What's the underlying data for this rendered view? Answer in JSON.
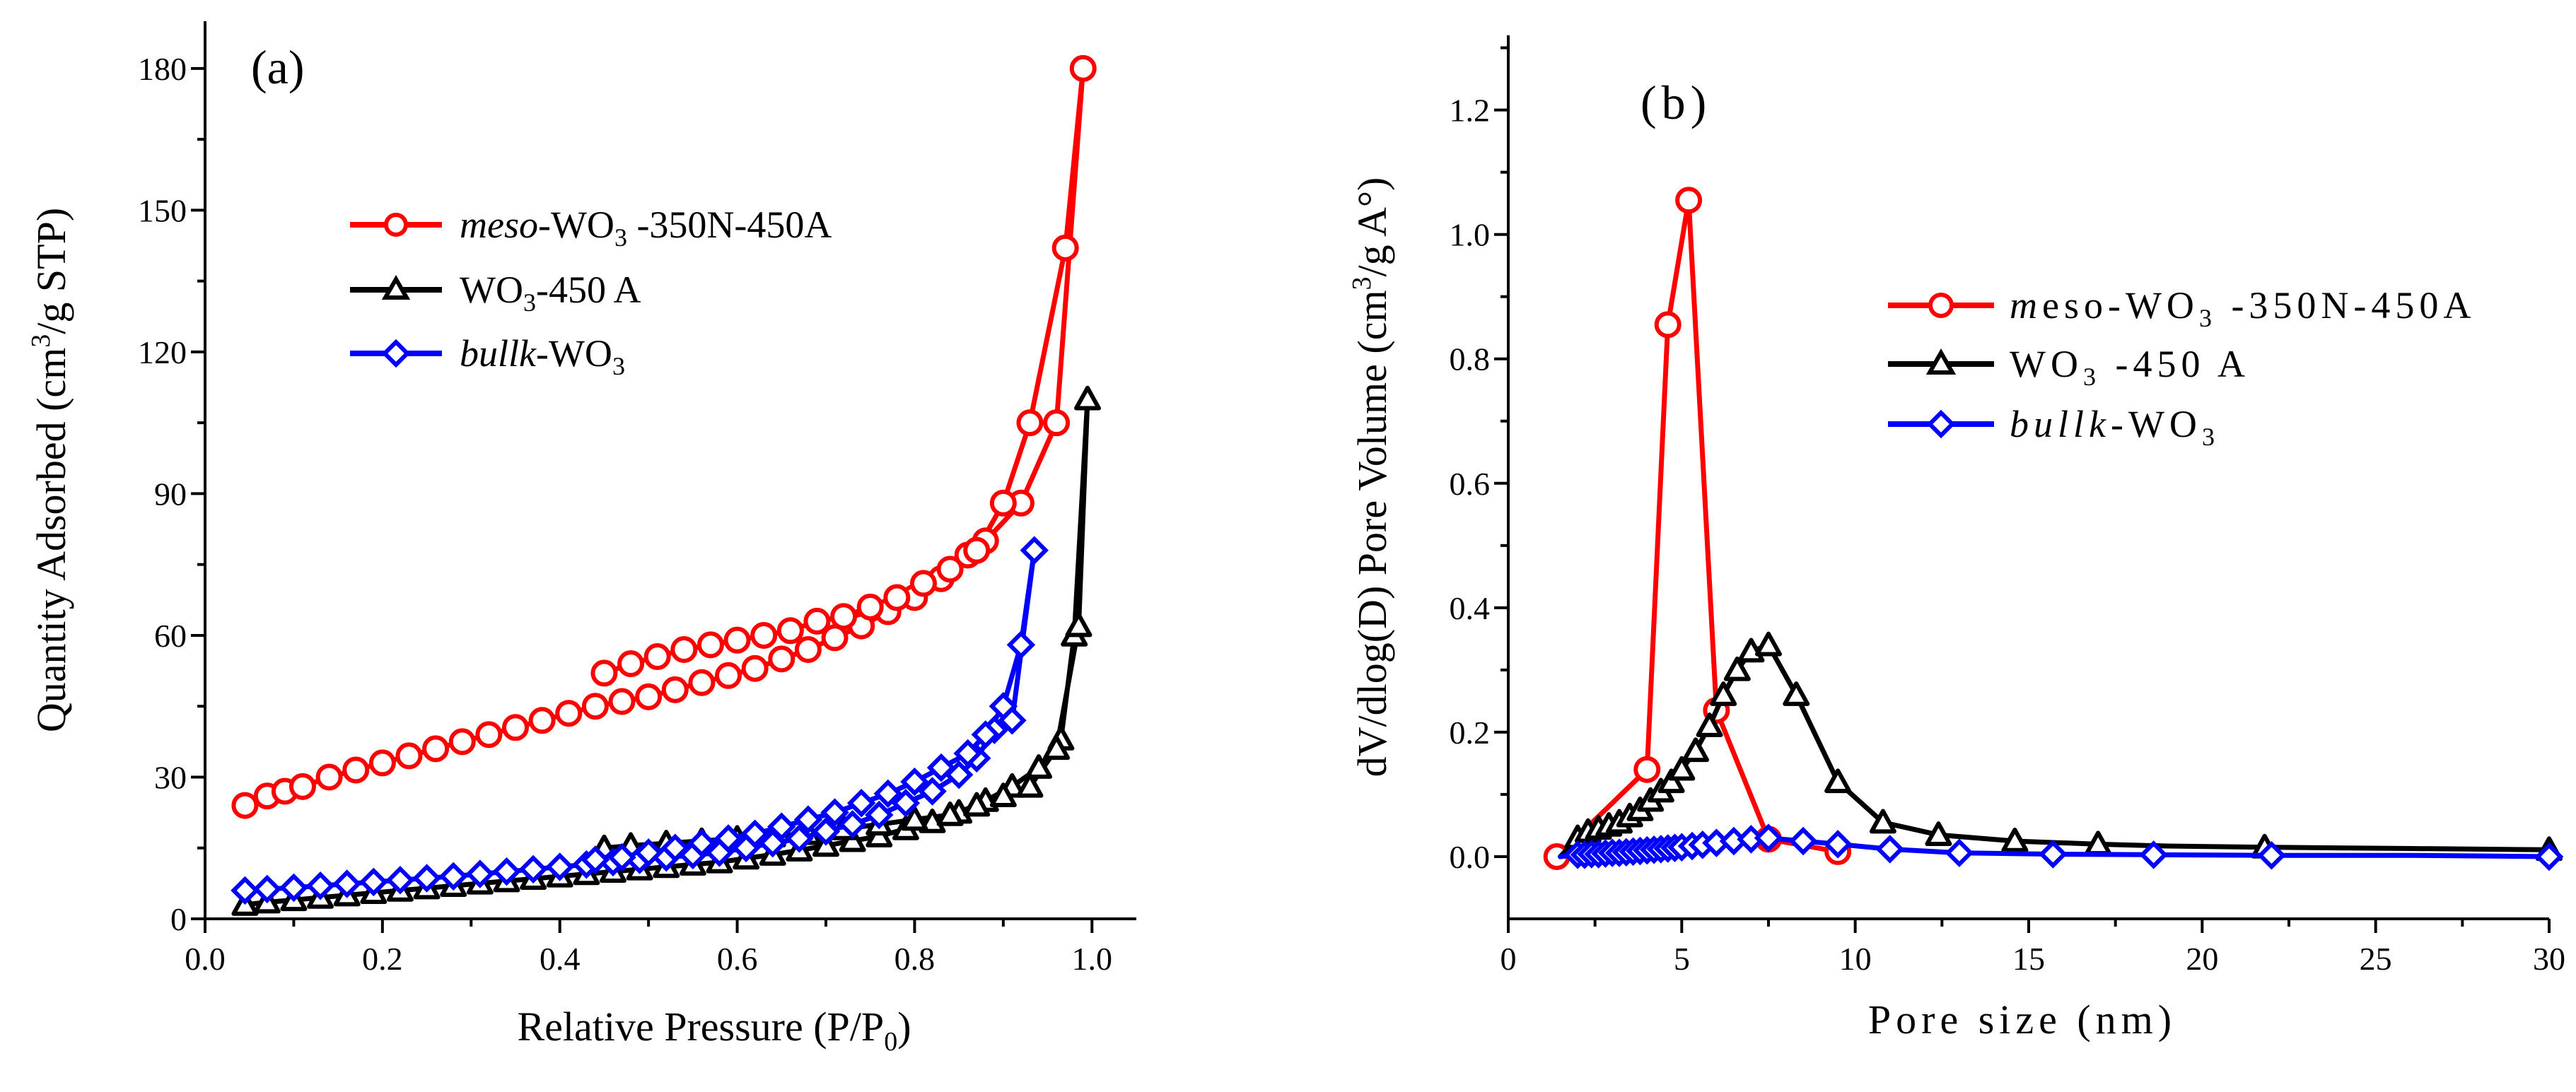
{
  "chart_data": [
    {
      "id": "a",
      "type": "line",
      "panel_label": "(a)",
      "xlabel_text": "Relative Pressure (P/P",
      "xlabel_sub": "0",
      "xlabel_close": ")",
      "ylabel_text": "Quantity Adsorbed (cm",
      "ylabel_sup": "3",
      "ylabel_rest": "/g STP)",
      "xlim": [
        0.0,
        1.05
      ],
      "ylim": [
        0,
        190
      ],
      "xticks": [
        0.0,
        0.2,
        0.4,
        0.6,
        0.8,
        1.0
      ],
      "xtick_labels": [
        "0.0",
        "0.2",
        "0.4",
        "0.6",
        "0.8",
        "1.0"
      ],
      "yticks": [
        0,
        30,
        60,
        90,
        120,
        150,
        180
      ],
      "ytick_labels": [
        "0",
        "30",
        "60",
        "90",
        "120",
        "150",
        "180"
      ],
      "series": [
        {
          "key": "meso",
          "color": "#ff0000",
          "marker": "circle",
          "legend": {
            "italic": "meso",
            "text": "-WO",
            "sub": "3",
            "tail": " -350N-450A"
          },
          "x": [
            0.045,
            0.07,
            0.09,
            0.11,
            0.14,
            0.17,
            0.2,
            0.23,
            0.26,
            0.29,
            0.32,
            0.35,
            0.38,
            0.41,
            0.44,
            0.47,
            0.5,
            0.53,
            0.56,
            0.59,
            0.62,
            0.65,
            0.68,
            0.71,
            0.74,
            0.77,
            0.8,
            0.83,
            0.86,
            0.88,
            0.92,
            0.96,
            0.99,
            0.97,
            0.93,
            0.9,
            0.87,
            0.84,
            0.81,
            0.78,
            0.75,
            0.72,
            0.69,
            0.66,
            0.63,
            0.6,
            0.57,
            0.54,
            0.51,
            0.48,
            0.45
          ],
          "y": [
            24,
            26,
            27,
            28,
            30,
            31.5,
            33,
            34.5,
            36,
            37.5,
            39,
            40.5,
            42,
            43.5,
            45,
            46,
            47,
            48.5,
            50,
            51.5,
            53,
            55,
            57,
            59.5,
            62,
            65,
            68,
            72,
            77,
            80,
            88,
            105,
            180,
            142,
            105,
            88,
            78,
            74,
            71,
            68,
            66,
            64,
            63,
            61,
            60,
            59,
            58,
            57,
            55.5,
            54,
            52
          ]
        },
        {
          "key": "wo3",
          "color": "#000000",
          "marker": "triangle",
          "legend": {
            "italic": "",
            "text": "WO",
            "sub": "3",
            "tail": "-450 A"
          },
          "x": [
            0.045,
            0.07,
            0.1,
            0.13,
            0.16,
            0.19,
            0.22,
            0.25,
            0.28,
            0.31,
            0.34,
            0.37,
            0.4,
            0.43,
            0.46,
            0.49,
            0.52,
            0.55,
            0.58,
            0.61,
            0.64,
            0.67,
            0.7,
            0.73,
            0.76,
            0.79,
            0.82,
            0.85,
            0.88,
            0.91,
            0.94,
            0.965,
            0.98,
            0.995,
            0.985,
            0.96,
            0.93,
            0.9,
            0.87,
            0.84,
            0.8,
            0.76,
            0.72,
            0.68,
            0.64,
            0.6,
            0.56,
            0.52,
            0.48,
            0.45
          ],
          "y": [
            3,
            3.5,
            4,
            4.5,
            5,
            5.5,
            6,
            6.5,
            7,
            7.5,
            8,
            8.5,
            9,
            9.5,
            10,
            10.5,
            11,
            11.5,
            12,
            12.8,
            13.6,
            14.5,
            15.5,
            16.5,
            17.5,
            19,
            20.5,
            22.5,
            25,
            28,
            32,
            38,
            60,
            110,
            62,
            36,
            28,
            26,
            24,
            22,
            21,
            20,
            19,
            18,
            17.5,
            17,
            16.5,
            16,
            15.5,
            15
          ]
        },
        {
          "key": "bulk",
          "color": "#0000ff",
          "marker": "diamond",
          "legend": {
            "italic": "bullk",
            "text": "-WO",
            "sub": "3",
            "tail": ""
          },
          "x": [
            0.045,
            0.07,
            0.1,
            0.13,
            0.16,
            0.19,
            0.22,
            0.25,
            0.28,
            0.31,
            0.34,
            0.37,
            0.4,
            0.43,
            0.46,
            0.49,
            0.52,
            0.55,
            0.58,
            0.61,
            0.64,
            0.67,
            0.7,
            0.73,
            0.76,
            0.79,
            0.82,
            0.85,
            0.87,
            0.89,
            0.91,
            0.935,
            0.92,
            0.9,
            0.88,
            0.86,
            0.83,
            0.8,
            0.77,
            0.74,
            0.71,
            0.68,
            0.65,
            0.62,
            0.59,
            0.56,
            0.53,
            0.5,
            0.47,
            0.44
          ],
          "y": [
            6,
            6.3,
            6.6,
            7,
            7.4,
            7.8,
            8.2,
            8.6,
            9,
            9.5,
            10,
            10.5,
            11,
            11.5,
            12,
            12.5,
            13,
            13.5,
            14,
            15,
            16,
            17,
            18.5,
            20,
            22,
            24.5,
            27,
            30.5,
            34,
            40,
            42,
            78,
            58,
            45,
            39,
            35,
            32,
            29,
            26.5,
            24.5,
            22.5,
            21,
            19.5,
            18,
            17,
            16,
            15,
            14,
            13,
            12.5
          ]
        }
      ]
    },
    {
      "id": "b",
      "type": "line",
      "panel_label": "(b)",
      "xlabel_text": "Pore size (nm)",
      "ylabel_text": "dV/dlog(D) Pore Volume (cm",
      "ylabel_sup": "3",
      "ylabel_rest": "/g A°)",
      "xlim": [
        0,
        30
      ],
      "ylim": [
        -0.1,
        1.32
      ],
      "xticks": [
        0,
        5,
        10,
        15,
        20,
        25,
        30
      ],
      "xtick_labels": [
        "0",
        "5",
        "10",
        "15",
        "20",
        "25",
        "30"
      ],
      "yticks": [
        0.0,
        0.2,
        0.4,
        0.6,
        0.8,
        1.0,
        1.2
      ],
      "ytick_labels": [
        "0.0",
        "0.2",
        "0.4",
        "0.6",
        "0.8",
        "1.0",
        "1.2"
      ],
      "series": [
        {
          "key": "meso",
          "color": "#ff0000",
          "marker": "circle",
          "legend": {
            "italic": "m",
            "text": "eso-WO",
            "sub": "3",
            "tail": " -350N-450A"
          },
          "x": [
            1.4,
            4.0,
            4.6,
            5.2,
            6.0,
            7.5,
            9.5
          ],
          "y": [
            0.0,
            0.14,
            0.855,
            1.055,
            0.235,
            0.028,
            0.008
          ],
          "marker_x": [
            1.4,
            4.0,
            4.6,
            5.2,
            6.0,
            7.5,
            9.5
          ],
          "marker_y": [
            0.0,
            0.14,
            0.855,
            1.055,
            0.235,
            0.028,
            0.008
          ]
        },
        {
          "key": "wo3",
          "color": "#000000",
          "marker": "triangle",
          "legend": {
            "italic": "",
            "text": "WO",
            "sub": "3",
            "tail": " -450 A"
          },
          "x": [
            1.5,
            2.0,
            2.3,
            2.6,
            2.9,
            3.2,
            3.5,
            3.8,
            4.1,
            4.4,
            4.7,
            5.0,
            5.4,
            5.8,
            6.2,
            6.6,
            7.0,
            7.5,
            8.3,
            9.5,
            10.8,
            12.4,
            14.6,
            17.0,
            19.0,
            22.0,
            26.0,
            30.0
          ],
          "y": [
            0.0,
            0.03,
            0.04,
            0.045,
            0.05,
            0.055,
            0.065,
            0.075,
            0.09,
            0.105,
            0.12,
            0.14,
            0.17,
            0.21,
            0.26,
            0.3,
            0.33,
            0.34,
            0.26,
            0.12,
            0.055,
            0.035,
            0.025,
            0.02,
            0.017,
            0.015,
            0.013,
            0.011
          ],
          "marker_x": [
            2.0,
            2.3,
            2.6,
            2.9,
            3.2,
            3.5,
            3.8,
            4.1,
            4.4,
            4.7,
            5.0,
            5.4,
            5.8,
            6.2,
            6.6,
            7.0,
            7.5,
            8.3,
            9.5,
            10.8,
            12.4,
            14.6,
            17.0,
            21.8,
            30.0
          ],
          "marker_y": [
            0.03,
            0.04,
            0.045,
            0.05,
            0.055,
            0.065,
            0.075,
            0.09,
            0.105,
            0.12,
            0.14,
            0.17,
            0.21,
            0.26,
            0.3,
            0.33,
            0.34,
            0.26,
            0.12,
            0.055,
            0.035,
            0.025,
            0.02,
            0.015,
            0.011
          ]
        },
        {
          "key": "bulk",
          "color": "#0000ff",
          "marker": "diamond",
          "legend": {
            "italic": "bullk",
            "text": "-WO",
            "sub": "3",
            "tail": ""
          },
          "x": [
            1.5,
            2.0,
            3.0,
            4.0,
            5.0,
            6.0,
            7.0,
            7.5,
            8.5,
            9.5,
            11.0,
            13.0,
            15.7,
            18.6,
            22.0,
            26.0,
            30.0
          ],
          "y": [
            0.0,
            0.003,
            0.006,
            0.01,
            0.015,
            0.022,
            0.028,
            0.03,
            0.025,
            0.02,
            0.012,
            0.006,
            0.004,
            0.003,
            0.002,
            0.002,
            0.0
          ],
          "marker_x": [
            2.0,
            2.2,
            2.4,
            2.6,
            2.8,
            3.0,
            3.2,
            3.4,
            3.6,
            3.8,
            4.0,
            4.2,
            4.4,
            4.6,
            4.8,
            5.0,
            5.3,
            5.6,
            6.0,
            6.5,
            7.0,
            7.5,
            8.5,
            9.5,
            11.0,
            13.0,
            15.7,
            18.6,
            22.0,
            30.0
          ],
          "marker_y": [
            0.003,
            0.003,
            0.004,
            0.004,
            0.005,
            0.006,
            0.006,
            0.007,
            0.008,
            0.009,
            0.01,
            0.011,
            0.012,
            0.013,
            0.014,
            0.015,
            0.017,
            0.019,
            0.022,
            0.025,
            0.028,
            0.03,
            0.025,
            0.02,
            0.012,
            0.006,
            0.004,
            0.003,
            0.002,
            0.0
          ]
        }
      ]
    }
  ]
}
